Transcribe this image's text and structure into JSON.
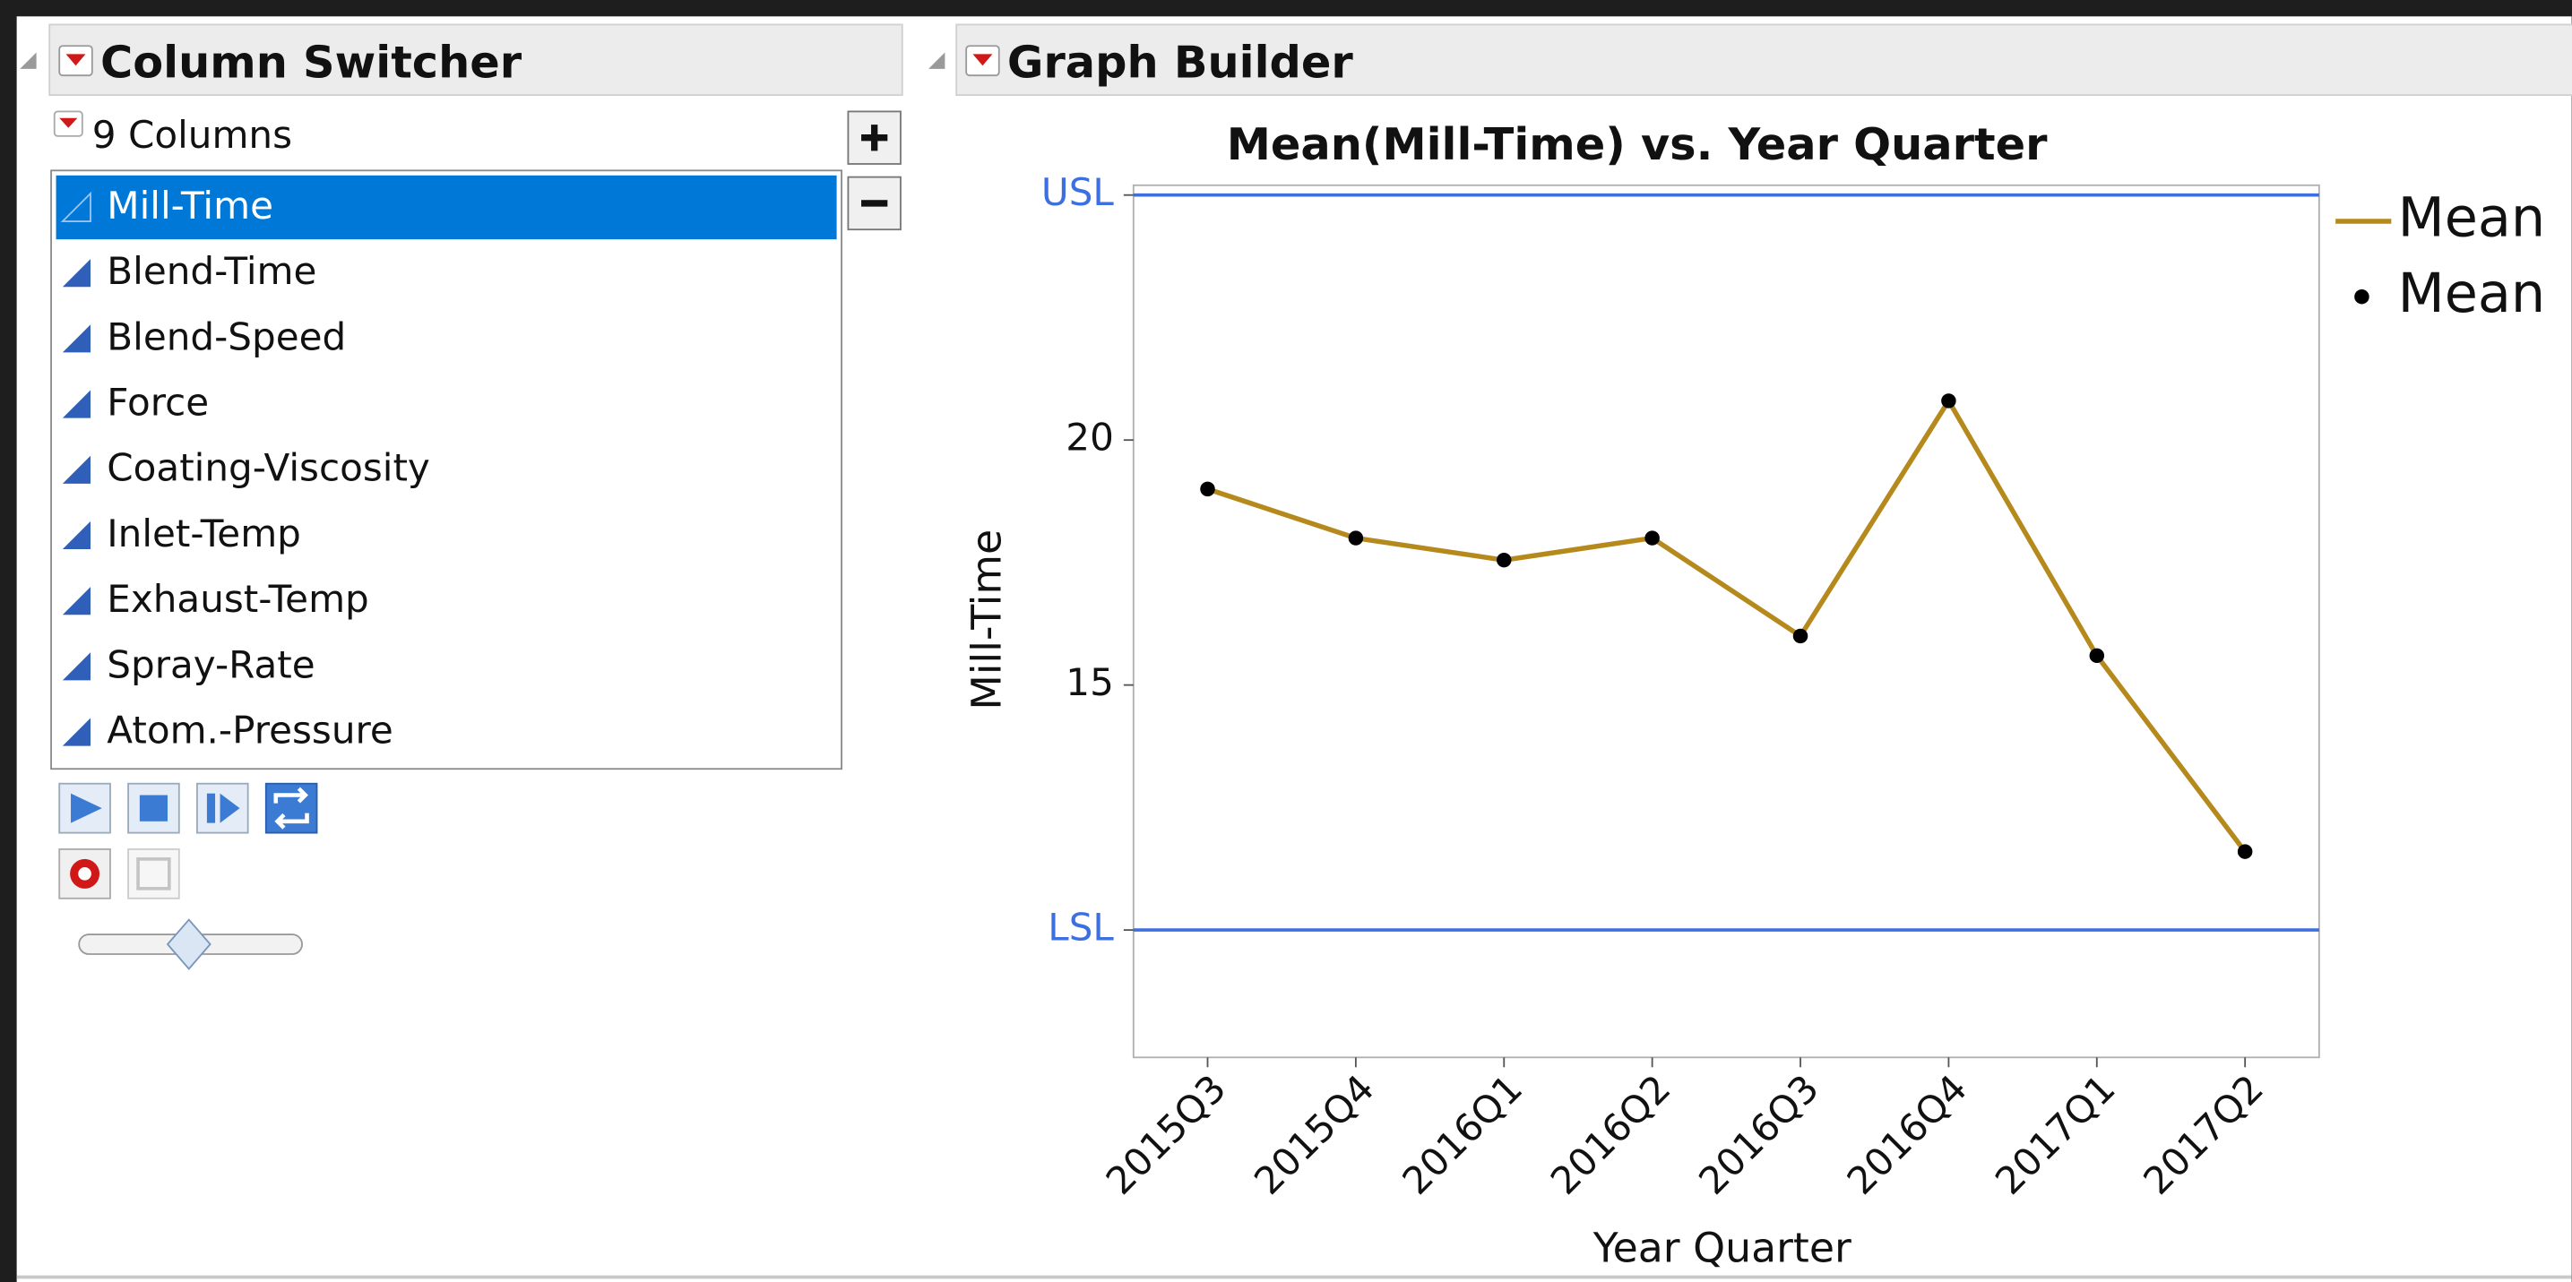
{
  "column_switcher": {
    "title": "Column Switcher",
    "count_label": "9 Columns",
    "columns": [
      "Mill-Time",
      "Blend-Time",
      "Blend-Speed",
      "Force",
      "Coating-Viscosity",
      "Inlet-Temp",
      "Exhaust-Temp",
      "Spray-Rate",
      "Atom.-Pressure"
    ],
    "selected": 0
  },
  "graph_builder": {
    "title": "Graph Builder"
  },
  "chart_data": {
    "type": "line",
    "title": "Mean(Mill-Time) vs. Year Quarter",
    "x_label": "Year Quarter",
    "y_label": "Mill-Time",
    "categories": [
      "2015Q3",
      "2015Q4",
      "2016Q1",
      "2016Q2",
      "2016Q3",
      "2016Q4",
      "2017Q1",
      "2017Q2"
    ],
    "series": [
      {
        "name": "Mean",
        "style": "line",
        "color": "#b5891c",
        "values": [
          19.0,
          18.0,
          17.55,
          18.0,
          16.0,
          20.8,
          15.6,
          11.6
        ]
      },
      {
        "name": "Mean",
        "style": "points",
        "color": "#000000",
        "values": [
          19.0,
          18.0,
          17.55,
          18.0,
          16.0,
          20.8,
          15.6,
          11.6
        ]
      }
    ],
    "ylim": [
      7.4,
      25.2
    ],
    "yticks": [
      {
        "value": 25,
        "label": "USL"
      },
      20,
      15,
      {
        "value": 10,
        "label": "LSL"
      }
    ],
    "spec_line_color": "#3c6fe0",
    "legend": "right"
  }
}
